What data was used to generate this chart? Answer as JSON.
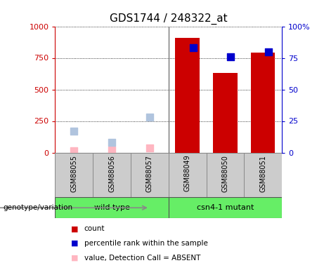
{
  "title": "GDS1744 / 248322_at",
  "samples": [
    "GSM88055",
    "GSM88056",
    "GSM88057",
    "GSM88049",
    "GSM88050",
    "GSM88051"
  ],
  "groups": [
    {
      "name": "wild type",
      "indices": [
        0,
        1,
        2
      ]
    },
    {
      "name": "csn4-1 mutant",
      "indices": [
        3,
        4,
        5
      ]
    }
  ],
  "count_values": [
    null,
    null,
    null,
    910,
    630,
    790
  ],
  "count_color": "#CC0000",
  "rank_values": [
    null,
    null,
    null,
    83,
    76,
    80
  ],
  "rank_color": "#0000CC",
  "absent_count_values": [
    15,
    20,
    35,
    null,
    null,
    null
  ],
  "absent_count_color": "#FFB6C1",
  "absent_rank_values": [
    17,
    8,
    28,
    null,
    null,
    null
  ],
  "absent_rank_color": "#B0C4DE",
  "ylim_left": [
    0,
    1000
  ],
  "ylim_right": [
    0,
    100
  ],
  "yticks_left": [
    0,
    250,
    500,
    750,
    1000
  ],
  "yticks_right": [
    0,
    25,
    50,
    75,
    100
  ],
  "ytick_labels_left": [
    "0",
    "250",
    "500",
    "750",
    "1000"
  ],
  "ytick_labels_right": [
    "0",
    "25",
    "50",
    "75",
    "100%"
  ],
  "left_axis_color": "#CC0000",
  "right_axis_color": "#0000CC",
  "bar_width": 0.4,
  "dot_size": 55,
  "bg_color": "#FFFFFF",
  "plot_bg_color": "#FFFFFF",
  "grid_color": "#000000",
  "title_fontsize": 11,
  "tick_label_fontsize": 8,
  "sample_fontsize": 7,
  "legend_fontsize": 8,
  "genotype_label": "genotype/variation",
  "group_box_color": "#CCCCCC",
  "group_label_box_color": "#66EE66"
}
